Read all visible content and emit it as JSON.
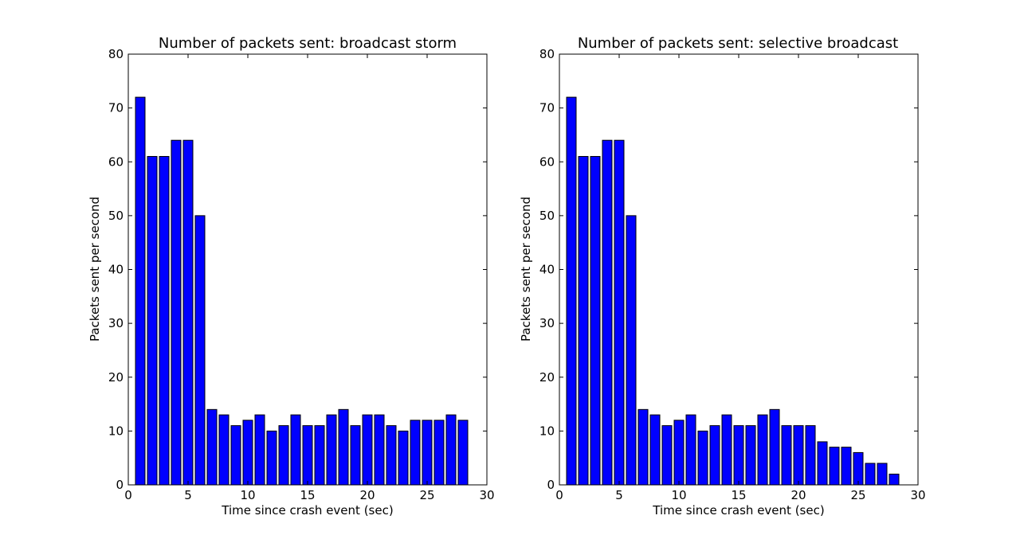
{
  "colors": {
    "bar": "#0000ff",
    "edge": "#000000",
    "background": "#ffffff"
  },
  "chart_data": [
    {
      "type": "bar",
      "title": "Number of packets sent: broadcast storm",
      "xlabel": "Time since crash event (sec)",
      "ylabel": "Packets sent per second",
      "xlim": [
        0,
        30
      ],
      "ylim": [
        0,
        80
      ],
      "xticks": [
        0,
        5,
        10,
        15,
        20,
        25,
        30
      ],
      "yticks": [
        0,
        10,
        20,
        30,
        40,
        50,
        60,
        70,
        80
      ],
      "grid": false,
      "bar_width": 0.8,
      "x": [
        1,
        2,
        3,
        4,
        5,
        6,
        7,
        8,
        9,
        10,
        11,
        12,
        13,
        14,
        15,
        16,
        17,
        18,
        19,
        20,
        21,
        22,
        23,
        24,
        25,
        26,
        27,
        28
      ],
      "values": [
        72,
        61,
        61,
        64,
        64,
        50,
        14,
        13,
        11,
        12,
        13,
        10,
        11,
        13,
        11,
        11,
        13,
        14,
        11,
        13,
        13,
        11,
        10,
        12,
        12,
        12,
        13,
        12
      ]
    },
    {
      "type": "bar",
      "title": "Number of packets sent: selective broadcast",
      "xlabel": "Time since crash event (sec)",
      "ylabel": "Packets sent per second",
      "xlim": [
        0,
        30
      ],
      "ylim": [
        0,
        80
      ],
      "xticks": [
        0,
        5,
        10,
        15,
        20,
        25,
        30
      ],
      "yticks": [
        0,
        10,
        20,
        30,
        40,
        50,
        60,
        70,
        80
      ],
      "grid": false,
      "bar_width": 0.8,
      "x": [
        1,
        2,
        3,
        4,
        5,
        6,
        7,
        8,
        9,
        10,
        11,
        12,
        13,
        14,
        15,
        16,
        17,
        18,
        19,
        20,
        21,
        22,
        23,
        24,
        25,
        26,
        27,
        28
      ],
      "values": [
        72,
        61,
        61,
        64,
        64,
        50,
        14,
        13,
        11,
        12,
        13,
        10,
        11,
        13,
        11,
        11,
        13,
        14,
        11,
        11,
        11,
        8,
        7,
        7,
        6,
        4,
        4,
        2
      ]
    }
  ]
}
